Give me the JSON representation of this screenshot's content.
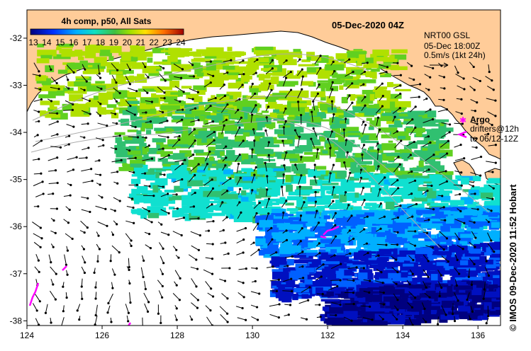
{
  "title": {
    "composite": "4h comp, p50, All Sats",
    "datetime": "05-Dec-2020 04Z"
  },
  "colorbar": {
    "labels": [
      "13",
      "14",
      "15",
      "16",
      "17",
      "18",
      "19",
      "20",
      "21",
      "22",
      "23",
      "24"
    ],
    "range": [
      13,
      24
    ],
    "colors": [
      "#00007f",
      "#0010c0",
      "#0060ff",
      "#00b0ff",
      "#10e0d0",
      "#30c070",
      "#60d020",
      "#b0e000",
      "#ffe000",
      "#ffa000",
      "#ff5000",
      "#c00000"
    ]
  },
  "currents": {
    "product": "NRT00 GSL",
    "time": "05-Dec 18:00Z",
    "scale_label": "0.5m/s (1kt 24h)"
  },
  "legend": {
    "argo_label": "Argo",
    "drifters_label": "drifters@12h",
    "drifters_time": "to 06/12-12Z"
  },
  "axes": {
    "x_ticks": [
      "124",
      "126",
      "128",
      "130",
      "132",
      "134",
      "136"
    ],
    "y_ticks": [
      "-32",
      "-33",
      "-34",
      "-35",
      "-36",
      "-37",
      "-38"
    ],
    "lon_range": [
      124,
      136.6
    ],
    "lat_range": [
      -38.1,
      -31.4
    ]
  },
  "credit": "© IMOS 09-Dec-2020 11:52 Hobart",
  "colors": {
    "land": "#ffcc99",
    "sea": "#ffffff",
    "drifter": "#ff00ff",
    "contour": "#aaaaaa"
  }
}
